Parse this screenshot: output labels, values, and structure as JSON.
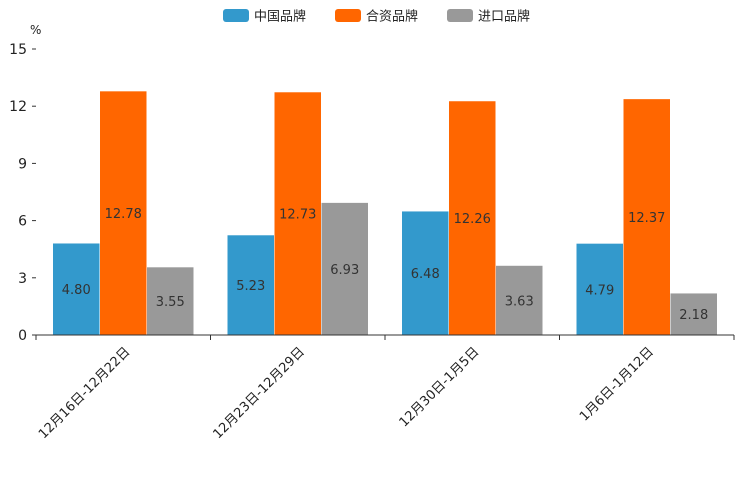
{
  "chart_data": {
    "type": "bar",
    "title": "",
    "xlabel": "",
    "ylabel": "%",
    "ylim": [
      0,
      15
    ],
    "yticks": [
      0,
      3,
      6,
      9,
      12,
      15
    ],
    "grid": false,
    "legend_position": "top-center",
    "categories": [
      "12月16日-12月22日",
      "12月23日-12月29日",
      "12月30日-1月5日",
      "1月6日-1月12日"
    ],
    "series": [
      {
        "name": "中国品牌",
        "color": "#3399CC",
        "values": [
          4.8,
          5.23,
          6.48,
          4.79
        ],
        "labels": [
          "4.80",
          "5.23",
          "6.48",
          "4.79"
        ]
      },
      {
        "name": "合资品牌",
        "color": "#FF6600",
        "values": [
          12.78,
          12.73,
          12.26,
          12.37
        ],
        "labels": [
          "12.78",
          "12.73",
          "12.26",
          "12.37"
        ]
      },
      {
        "name": "进口品牌",
        "color": "#999999",
        "values": [
          3.55,
          6.93,
          3.63,
          2.18
        ],
        "labels": [
          "3.55",
          "6.93",
          "3.63",
          "2.18"
        ]
      }
    ]
  }
}
